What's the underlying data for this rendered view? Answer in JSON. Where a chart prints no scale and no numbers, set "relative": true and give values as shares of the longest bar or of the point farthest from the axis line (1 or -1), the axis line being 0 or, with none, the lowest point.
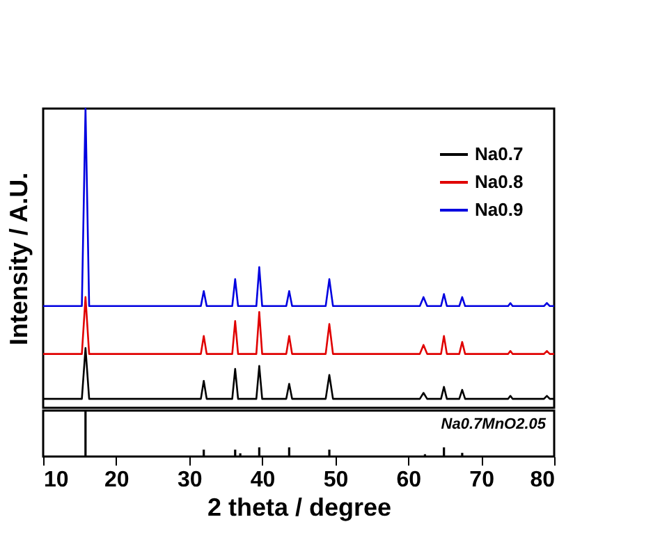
{
  "chart_data": [
    {
      "type": "line",
      "ylabel": "Intensity / A.U.",
      "relative": true,
      "legend": "top right",
      "tick_labels": false,
      "grid": false,
      "marker": "none",
      "line_style": "solid",
      "xlim": [
        10,
        80
      ],
      "x": [
        10,
        15.3,
        15.8,
        16.3,
        31.6,
        32.0,
        32.4,
        35.9,
        36.3,
        36.7,
        39.2,
        39.6,
        40.0,
        43.3,
        43.7,
        44.1,
        48.7,
        49.2,
        49.7,
        61.6,
        62.1,
        62.6,
        64.5,
        64.9,
        65.3,
        67.0,
        67.4,
        67.8,
        73.7,
        74.0,
        74.3,
        78.6,
        79.0,
        79.4,
        80
      ],
      "series": [
        {
          "name": "Na0.7",
          "color": "#000000",
          "values": [
            0.03,
            0.03,
            0.2,
            0.03,
            0.03,
            0.09,
            0.03,
            0.03,
            0.13,
            0.03,
            0.03,
            0.14,
            0.03,
            0.03,
            0.08,
            0.03,
            0.03,
            0.11,
            0.03,
            0.03,
            0.05,
            0.03,
            0.03,
            0.07,
            0.03,
            0.03,
            0.06,
            0.03,
            0.03,
            0.04,
            0.03,
            0.03,
            0.04,
            0.03,
            0.03
          ]
        },
        {
          "name": "Na0.8",
          "color": "#e00000",
          "values": [
            0.18,
            0.18,
            0.37,
            0.18,
            0.18,
            0.24,
            0.18,
            0.18,
            0.29,
            0.18,
            0.18,
            0.32,
            0.18,
            0.18,
            0.24,
            0.18,
            0.18,
            0.28,
            0.18,
            0.18,
            0.21,
            0.18,
            0.18,
            0.24,
            0.18,
            0.18,
            0.22,
            0.18,
            0.18,
            0.19,
            0.18,
            0.18,
            0.19,
            0.18,
            0.18
          ]
        },
        {
          "name": "Na0.9",
          "color": "#0000e0",
          "values": [
            0.34,
            0.34,
            1.0,
            0.34,
            0.34,
            0.39,
            0.34,
            0.34,
            0.43,
            0.34,
            0.34,
            0.47,
            0.34,
            0.34,
            0.39,
            0.34,
            0.34,
            0.43,
            0.34,
            0.34,
            0.37,
            0.34,
            0.34,
            0.38,
            0.34,
            0.34,
            0.37,
            0.34,
            0.34,
            0.35,
            0.34,
            0.34,
            0.35,
            0.34,
            0.34
          ]
        }
      ]
    },
    {
      "type": "bar",
      "xlabel": "2 theta / degree",
      "relative": true,
      "tick_labels": "x",
      "grid": false,
      "xlim": [
        10,
        80
      ],
      "xticks": [
        10,
        20,
        30,
        40,
        50,
        60,
        70,
        80
      ],
      "annotations": [
        "Na0.7MnO2.05"
      ],
      "x": [
        15.8,
        32.0,
        36.3,
        37.0,
        39.6,
        43.7,
        49.2,
        62.3,
        64.9,
        67.4
      ],
      "values": [
        1.0,
        0.15,
        0.15,
        0.07,
        0.2,
        0.2,
        0.15,
        0.05,
        0.2,
        0.08
      ],
      "color": "#000000"
    }
  ]
}
